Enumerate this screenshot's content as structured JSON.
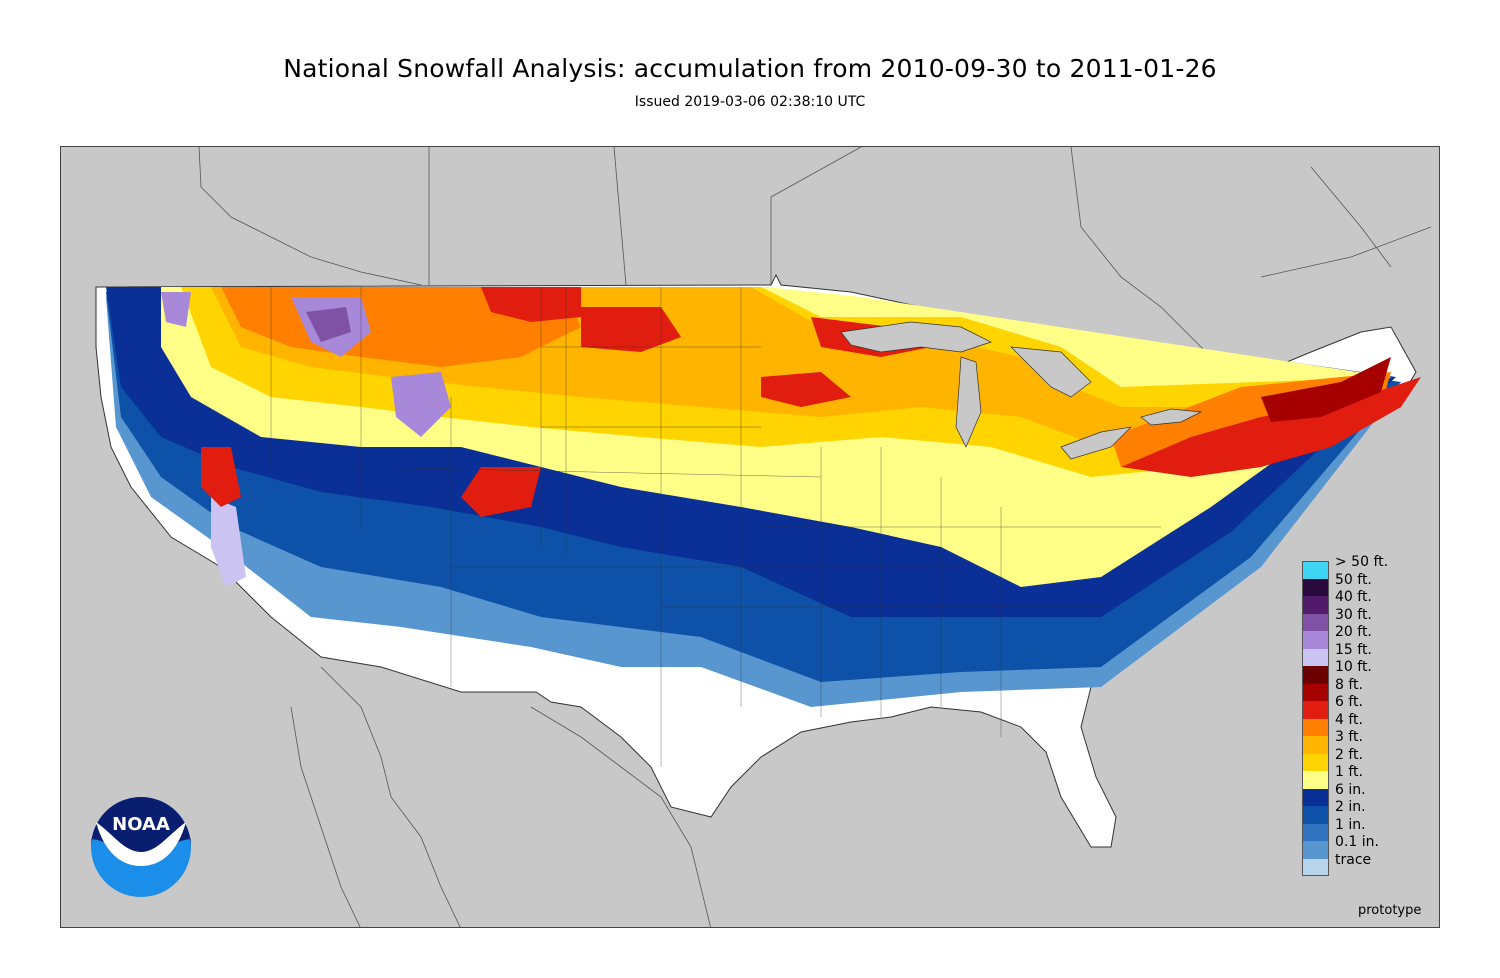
{
  "title": "National Snowfall Analysis: accumulation from 2010-09-30 to 2011-01-26",
  "subtitle": "Issued 2019-03-06 02:38:10 UTC",
  "footer_note": "prototype",
  "logo_text": "NOAA",
  "legend": {
    "items": [
      {
        "label": "> 50 ft.",
        "color": "#3fd5f4"
      },
      {
        "label": "50 ft.",
        "color": "#2a0a3c"
      },
      {
        "label": "40 ft.",
        "color": "#521a6b"
      },
      {
        "label": "30 ft.",
        "color": "#7f52a6"
      },
      {
        "label": "20 ft.",
        "color": "#a888d8"
      },
      {
        "label": "15 ft.",
        "color": "#cbc3f2"
      },
      {
        "label": "10 ft.",
        "color": "#6a0000"
      },
      {
        "label": "8 ft.",
        "color": "#a60000"
      },
      {
        "label": "6 ft.",
        "color": "#e01d0f"
      },
      {
        "label": "4 ft.",
        "color": "#ff7f00"
      },
      {
        "label": "3 ft.",
        "color": "#ffb400"
      },
      {
        "label": "2 ft.",
        "color": "#ffd400"
      },
      {
        "label": "1 ft.",
        "color": "#ffff88"
      },
      {
        "label": "6 in.",
        "color": "#0a2f96"
      },
      {
        "label": "2 in.",
        "color": "#0d52a8"
      },
      {
        "label": "1 in.",
        "color": "#2f72c0"
      },
      {
        "label": "0.1 in.",
        "color": "#5896d0"
      },
      {
        "label": "trace",
        "color": "#b8d4ea"
      }
    ],
    "bottom_color": "#ffffff"
  },
  "colors": {
    "background": "#c8c8c8",
    "no_snow": "#ffffff",
    "border_line": "#444444",
    "noaa_blue_dark": "#0a1e70",
    "noaa_blue_light": "#1a8ee8"
  }
}
